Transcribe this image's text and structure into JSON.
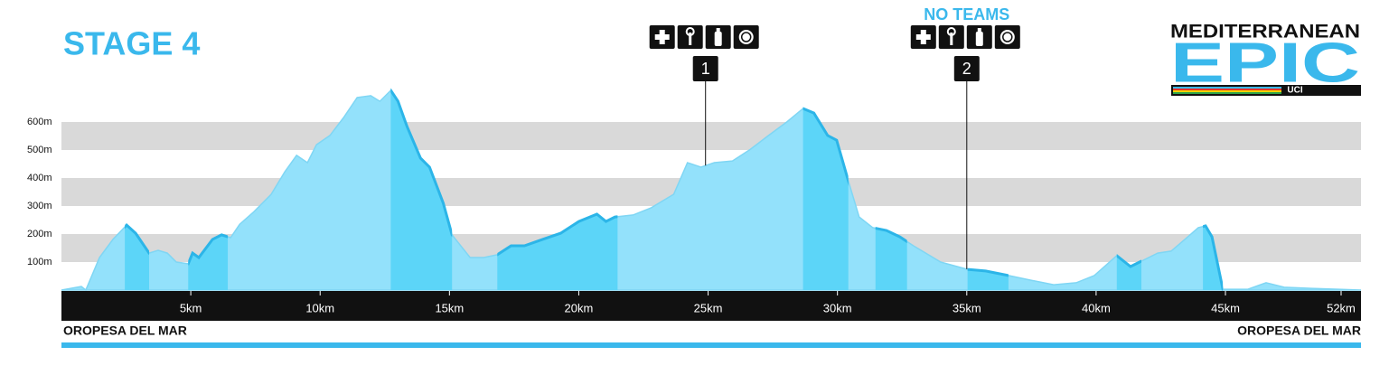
{
  "chart_data": {
    "type": "area",
    "title": "STAGE 4",
    "start_label": "OROPESA DEL MAR",
    "finish_label": "OROPESA DEL MAR",
    "logo": {
      "name": "MEDITERRANEAN",
      "word": "EPIC",
      "badge": "UCI"
    },
    "x": [
      0,
      0.77,
      0.94,
      1.47,
      1.99,
      2.52,
      2.87,
      3.39,
      3.74,
      4.09,
      4.44,
      4.9,
      5.07,
      5.31,
      5.84,
      6.19,
      6.54,
      6.89,
      7.41,
      8.11,
      8.64,
      9.09,
      9.51,
      9.86,
      10.38,
      10.91,
      11.43,
      11.96,
      12.31,
      12.73,
      13.01,
      13.36,
      13.88,
      14.23,
      14.76,
      15.1,
      15.8,
      16.33,
      16.85,
      17.38,
      17.9,
      18.6,
      19.3,
      20.0,
      20.7,
      21.05,
      21.4,
      22.1,
      22.8,
      23.67,
      24.2,
      24.72,
      25.24,
      25.94,
      26.64,
      27.34,
      28.04,
      28.67,
      29.09,
      29.62,
      29.97,
      30.42,
      30.84,
      31.36,
      31.89,
      32.41,
      32.94,
      33.99,
      35.03,
      35.73,
      36.61,
      37.48,
      38.36,
      39.23,
      39.93,
      40.8,
      41.33,
      41.68,
      42.38,
      42.9,
      43.43,
      43.95,
      44.23,
      44.48,
      44.9,
      45.87,
      46.57,
      47.27,
      48.32,
      49.37,
      50.24
    ],
    "values": [
      0,
      13,
      0,
      116,
      181,
      232,
      203,
      132,
      142,
      132,
      100,
      94,
      132,
      116,
      181,
      197,
      187,
      235,
      277,
      342,
      423,
      481,
      455,
      519,
      552,
      616,
      687,
      694,
      674,
      713,
      674,
      584,
      471,
      439,
      310,
      197,
      116,
      116,
      126,
      158,
      158,
      181,
      203,
      245,
      271,
      245,
      261,
      268,
      294,
      342,
      455,
      439,
      455,
      461,
      503,
      552,
      600,
      648,
      632,
      552,
      535,
      390,
      261,
      223,
      213,
      190,
      158,
      100,
      74,
      68,
      52,
      35,
      19,
      26,
      52,
      123,
      84,
      100,
      132,
      139,
      181,
      223,
      229,
      190,
      3,
      3,
      26,
      10,
      6,
      3,
      0
    ],
    "color": "#93e1fb",
    "climb_color": "#5cd5f8",
    "line_color": "#2cb5e8",
    "band_color": "#d9d9d9",
    "climbs": [
      [
        2.45,
        3.39
      ],
      [
        4.9,
        6.43
      ],
      [
        12.73,
        15.1
      ],
      [
        16.85,
        21.5
      ],
      [
        28.67,
        30.42
      ],
      [
        31.47,
        32.69
      ],
      [
        35.03,
        36.61
      ],
      [
        40.8,
        41.75
      ],
      [
        44.13,
        44.9
      ]
    ],
    "stations": [
      {
        "km": 24.9,
        "label": "1"
      },
      {
        "km": 35,
        "label": "2",
        "note": "NO TEAMS"
      }
    ],
    "xlim": [
      0,
      50.24
    ],
    "xticks": [
      {
        "value": 5,
        "label": "5km"
      },
      {
        "value": 10,
        "label": "10km"
      },
      {
        "value": 15,
        "label": "15km"
      },
      {
        "value": 20,
        "label": "20km"
      },
      {
        "value": 25,
        "label": "25km"
      },
      {
        "value": 30,
        "label": "30km"
      },
      {
        "value": 35,
        "label": "35km"
      },
      {
        "value": 40,
        "label": "40km"
      },
      {
        "value": 45,
        "label": "45km"
      },
      {
        "value": 52,
        "label": "52km"
      }
    ],
    "ylim": [
      0,
      720
    ],
    "yticks": [
      {
        "value": 100,
        "label": "100m"
      },
      {
        "value": 200,
        "label": "200m"
      },
      {
        "value": 300,
        "label": "300m"
      },
      {
        "value": 400,
        "label": "400m"
      },
      {
        "value": 500,
        "label": "500m"
      },
      {
        "value": 600,
        "label": "600m"
      }
    ]
  }
}
